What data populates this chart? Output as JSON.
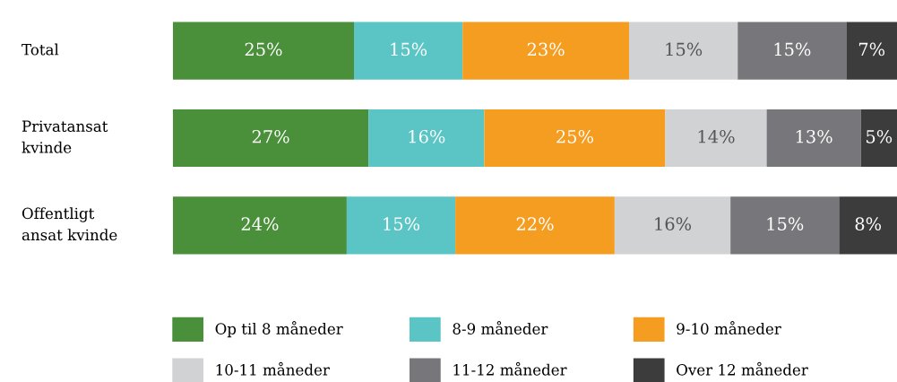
{
  "chart_data": {
    "type": "bar",
    "orientation": "horizontal",
    "stacked": true,
    "categories": [
      "Total",
      "Privatansat\nkvinde",
      "Offentligt\nansat kvinde"
    ],
    "xlim": [
      0,
      100
    ],
    "legend": "bottom",
    "series": [
      {
        "name": "Op til 8 måneder",
        "color": "#4a8f3a",
        "values": [
          25,
          27,
          24
        ],
        "value_labels": [
          "25%",
          "27%",
          "24%"
        ]
      },
      {
        "name": "8-9 måneder",
        "color": "#5bc5c6",
        "values": [
          15,
          16,
          15
        ],
        "value_labels": [
          "15%",
          "16%",
          "15%"
        ]
      },
      {
        "name": "9-10 måneder",
        "color": "#f59d20",
        "values": [
          23,
          25,
          22
        ],
        "value_labels": [
          "23%",
          "25%",
          "22%"
        ]
      },
      {
        "name": "10-11 måneder",
        "color": "#d1d2d4",
        "values": [
          15,
          14,
          16
        ],
        "value_labels": [
          "15%",
          "14%",
          "16%"
        ]
      },
      {
        "name": "11-12 måneder",
        "color": "#77777b",
        "values": [
          15,
          13,
          15
        ],
        "value_labels": [
          "15%",
          "13%",
          "15%"
        ]
      },
      {
        "name": "Over 12 måneder",
        "color": "#3c3c3c",
        "values": [
          7,
          5,
          8
        ],
        "value_labels": [
          "7%",
          "5%",
          "8%"
        ]
      }
    ]
  }
}
